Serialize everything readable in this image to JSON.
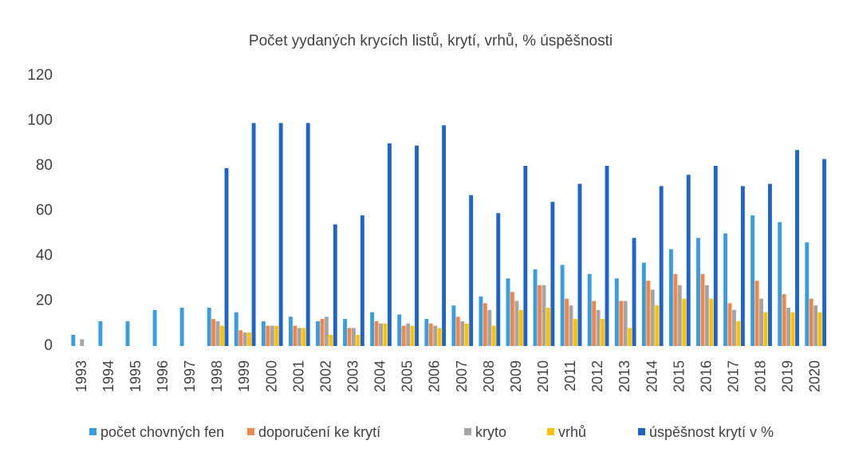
{
  "chart_data": {
    "type": "bar",
    "title": "Počet yydaných krycích listů, krytí, vrhů, % úspěšnosti",
    "categories": [
      "1993",
      "1994",
      "1995",
      "1996",
      "1997",
      "1998",
      "1999",
      "2000",
      "2001",
      "2002",
      "2003",
      "2004",
      "2005",
      "2006",
      "2007",
      "2008",
      "2009",
      "2010",
      "2011",
      "2012",
      "2013",
      "2014",
      "2015",
      "2016",
      "2017",
      "2018",
      "2019",
      "2020"
    ],
    "series": [
      {
        "name": "počet chovných fen",
        "color": "#3a9de0",
        "values": [
          5,
          11,
          11,
          16,
          17,
          17,
          15,
          11,
          13,
          11,
          12,
          15,
          14,
          12,
          18,
          22,
          30,
          34,
          36,
          32,
          30,
          37,
          43,
          48,
          50,
          58,
          55,
          46
        ]
      },
      {
        "name": "doporučení ke krytí",
        "color": "#f0874a",
        "values": [
          0,
          null,
          null,
          null,
          null,
          12,
          7,
          9,
          9,
          12,
          8,
          11,
          9,
          10,
          13,
          19,
          24,
          27,
          21,
          20,
          20,
          29,
          32,
          32,
          19,
          29,
          23,
          21
        ]
      },
      {
        "name": "kryto",
        "color": "#a5a5a5",
        "values": [
          3,
          null,
          null,
          null,
          null,
          11,
          6,
          9,
          8,
          13,
          8,
          10,
          10,
          9,
          11,
          16,
          20,
          27,
          18,
          16,
          20,
          25,
          27,
          27,
          16,
          21,
          17,
          18
        ]
      },
      {
        "name": "vrhů",
        "color": "#ffc000",
        "values": [
          0,
          null,
          null,
          null,
          null,
          9,
          6,
          9,
          8,
          5,
          5,
          10,
          9,
          8,
          10,
          9,
          16,
          17,
          12,
          12,
          8,
          18,
          21,
          21,
          11,
          15,
          15,
          15
        ]
      },
      {
        "name": "úspěšnost krytí v %",
        "color": "#1f64c8",
        "values": [
          null,
          null,
          null,
          null,
          null,
          79,
          99,
          99,
          99,
          54,
          58,
          90,
          89,
          98,
          67,
          59,
          80,
          64,
          72,
          80,
          48,
          71,
          76,
          80,
          71,
          72,
          87,
          83
        ]
      }
    ],
    "ylim": [
      0,
      120
    ],
    "yticks": [
      0,
      20,
      40,
      60,
      80,
      100,
      120
    ],
    "grid": false,
    "legend": "bottom"
  }
}
